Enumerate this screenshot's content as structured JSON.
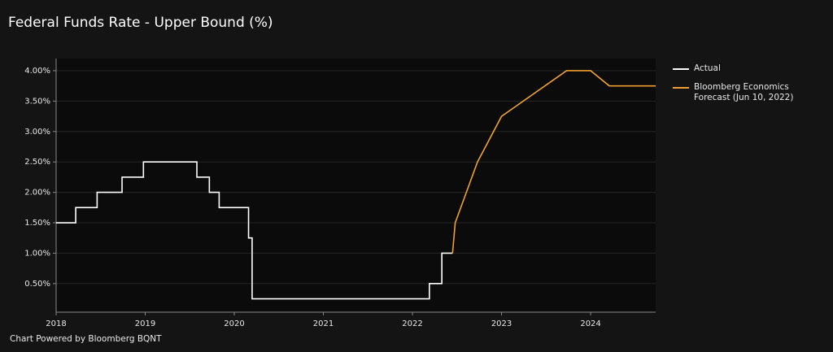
{
  "chart_data": {
    "type": "line",
    "title": "Federal Funds Rate - Upper Bound (%)",
    "footer": "Chart Powered by Bloomberg BQNT",
    "xlim": [
      2018,
      2024.73
    ],
    "xticks": [
      2018,
      2019,
      2020,
      2021,
      2022,
      2023,
      2024
    ],
    "ylim": [
      0.03,
      4.2
    ],
    "yticks": [
      {
        "value": 0.5,
        "label": "0.50%"
      },
      {
        "value": 1.0,
        "label": "1.00%"
      },
      {
        "value": 1.5,
        "label": "1.50%"
      },
      {
        "value": 2.0,
        "label": "2.00%"
      },
      {
        "value": 2.5,
        "label": "2.50%"
      },
      {
        "value": 3.0,
        "label": "3.00%"
      },
      {
        "value": 3.5,
        "label": "3.50%"
      },
      {
        "value": 4.0,
        "label": "4.00%"
      }
    ],
    "grid": true,
    "series": [
      {
        "name": "Actual",
        "color": "#ffffff",
        "x": [
          2018,
          2018.22,
          2018.22,
          2018.46,
          2018.46,
          2018.74,
          2018.74,
          2018.98,
          2018.98,
          2019.58,
          2019.58,
          2019.72,
          2019.72,
          2019.83,
          2019.83,
          2020.16,
          2020.16,
          2020.2,
          2020.2,
          2022.19,
          2022.19,
          2022.33,
          2022.33,
          2022.45
        ],
        "values": [
          1.5,
          1.5,
          1.75,
          1.75,
          2.0,
          2.0,
          2.25,
          2.25,
          2.5,
          2.5,
          2.25,
          2.25,
          2.0,
          2.0,
          1.75,
          1.75,
          1.25,
          1.25,
          0.25,
          0.25,
          0.5,
          0.5,
          1.0,
          1.0
        ]
      },
      {
        "name": "Bloomberg Economics Forecast (Jun 10, 2022)",
        "color": "#f0a030",
        "x": [
          2022.45,
          2022.48,
          2022.73,
          2023.0,
          2023.73,
          2024.0,
          2024.21,
          2024.73
        ],
        "values": [
          1.0,
          1.5,
          2.5,
          3.25,
          4.0,
          4.0,
          3.75,
          3.75
        ]
      }
    ]
  }
}
